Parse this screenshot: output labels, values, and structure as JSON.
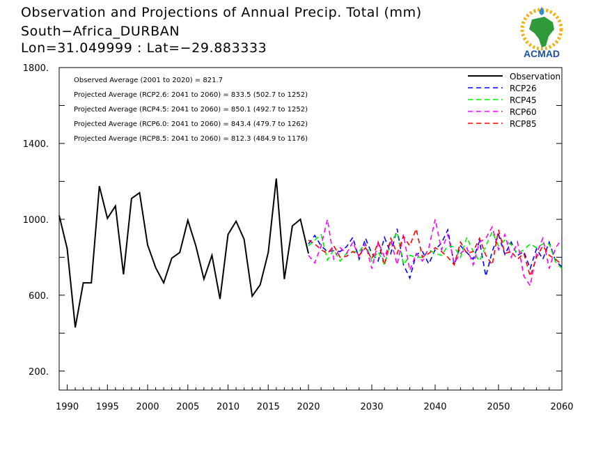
{
  "header": {
    "title": "Observation and Projections of Annual Precip. Total (mm)",
    "location": "South−Africa_DURBAN",
    "coords": "Lon=31.049999 : Lat=−29.883333"
  },
  "logo": {
    "text": "ACMAD",
    "icon": "africa-map-icon",
    "colors": {
      "africa": "#2e9a3a",
      "text": "#1f4fa8",
      "rays": "#f2b216",
      "drop": "#2a8fd6"
    }
  },
  "chart_data": {
    "type": "line",
    "ylim": [
      100,
      1800
    ],
    "yticks": [
      200,
      600,
      1000,
      1400,
      1800
    ],
    "ytick_labels": [
      "200.",
      "600.",
      "1000.",
      "1400.",
      "1800."
    ],
    "xticks": [
      1990,
      1995,
      2000,
      2005,
      2010,
      2015,
      2020,
      2030,
      2040,
      2050,
      2060
    ],
    "xtick_labels": [
      "1990",
      "1995",
      "2000",
      "2005",
      "2010",
      "2015",
      "2020",
      "2030",
      "2040",
      "2050",
      "2060"
    ],
    "axis_break_note": "x axis spans 1989-2020 (observations) then 2020-2060 (projections) at a different scale",
    "annotations": [
      "Observed Average (2001 to 2020) = 821.7",
      "Projected Average (RCP2.6: 2041 to 2060) = 833.5 (502.7 to 1252)",
      "Projected Average (RCP4.5: 2041 to 2060) = 850.1 (492.7 to 1252)",
      "Projected Average (RCP6.0: 2041 to 2060) = 843.4 (479.7 to 1262)",
      "Projected Average (RCP8.5: 2041 to 2060) = 812.3 (484.9 to 1176)"
    ],
    "legend_position": "top-right",
    "series": [
      {
        "name": "Observation",
        "color": "#000000",
        "dash": "solid",
        "x": [
          1989,
          1990,
          1991,
          1992,
          1993,
          1994,
          1995,
          1996,
          1997,
          1998,
          1999,
          2000,
          2001,
          2002,
          2003,
          2004,
          2005,
          2006,
          2007,
          2008,
          2009,
          2010,
          2011,
          2012,
          2013,
          2014,
          2015,
          2016,
          2017,
          2018,
          2019,
          2020
        ],
        "values": [
          1020,
          845,
          430,
          665,
          665,
          1175,
          1005,
          1070,
          710,
          1110,
          1140,
          865,
          745,
          665,
          795,
          825,
          995,
          860,
          685,
          810,
          580,
          920,
          990,
          895,
          595,
          655,
          825,
          1215,
          685,
          965,
          1000,
          820
        ]
      },
      {
        "name": "RCP26",
        "color": "#0000ff",
        "dash": "dashed",
        "x": [
          2020,
          2021,
          2022,
          2023,
          2024,
          2025,
          2026,
          2027,
          2028,
          2029,
          2030,
          2031,
          2032,
          2033,
          2034,
          2035,
          2036,
          2037,
          2038,
          2039,
          2040,
          2041,
          2042,
          2043,
          2044,
          2045,
          2046,
          2047,
          2048,
          2049,
          2050,
          2051,
          2052,
          2053,
          2054,
          2055,
          2056,
          2057,
          2058,
          2059,
          2060
        ],
        "values": [
          870,
          915,
          860,
          830,
          835,
          830,
          855,
          905,
          790,
          900,
          820,
          780,
          905,
          820,
          950,
          760,
          690,
          815,
          830,
          765,
          840,
          875,
          945,
          760,
          860,
          825,
          790,
          885,
          700,
          830,
          920,
          815,
          880,
          810,
          830,
          740,
          845,
          790,
          880,
          780,
          750
        ]
      },
      {
        "name": "RCP45",
        "color": "#00ee00",
        "dash": "dashed",
        "x": [
          2020,
          2021,
          2022,
          2023,
          2024,
          2025,
          2026,
          2027,
          2028,
          2029,
          2030,
          2031,
          2032,
          2033,
          2034,
          2035,
          2036,
          2037,
          2038,
          2039,
          2040,
          2041,
          2042,
          2043,
          2044,
          2045,
          2046,
          2047,
          2048,
          2049,
          2050,
          2051,
          2052,
          2053,
          2054,
          2055,
          2056,
          2057,
          2058,
          2059,
          2060
        ],
        "values": [
          860,
          890,
          920,
          785,
          840,
          780,
          820,
          830,
          830,
          875,
          780,
          830,
          760,
          880,
          930,
          760,
          810,
          800,
          800,
          840,
          820,
          810,
          860,
          855,
          800,
          905,
          830,
          780,
          860,
          935,
          860,
          890,
          865,
          820,
          840,
          870,
          850,
          870,
          870,
          775,
          740
        ]
      },
      {
        "name": "RCP60",
        "color": "#ff00ff",
        "dash": "dashed",
        "x": [
          2020,
          2021,
          2022,
          2023,
          2024,
          2025,
          2026,
          2027,
          2028,
          2029,
          2030,
          2031,
          2032,
          2033,
          2034,
          2035,
          2036,
          2037,
          2038,
          2039,
          2040,
          2041,
          2042,
          2043,
          2044,
          2045,
          2046,
          2047,
          2048,
          2049,
          2050,
          2051,
          2052,
          2053,
          2054,
          2055,
          2056,
          2057,
          2058,
          2059,
          2060
        ],
        "values": [
          810,
          770,
          860,
          1000,
          790,
          850,
          820,
          880,
          800,
          870,
          740,
          880,
          800,
          890,
          760,
          920,
          730,
          820,
          780,
          850,
          1000,
          840,
          920,
          770,
          820,
          850,
          760,
          880,
          900,
          960,
          840,
          920,
          800,
          880,
          700,
          650,
          820,
          900,
          740,
          850,
          895
        ]
      },
      {
        "name": "RCP85",
        "color": "#ff0000",
        "dash": "dashed",
        "x": [
          2020,
          2021,
          2022,
          2023,
          2024,
          2025,
          2026,
          2027,
          2028,
          2029,
          2030,
          2031,
          2032,
          2033,
          2034,
          2035,
          2036,
          2037,
          2038,
          2039,
          2040,
          2041,
          2042,
          2043,
          2044,
          2045,
          2046,
          2047,
          2048,
          2049,
          2050,
          2051,
          2052,
          2053,
          2054,
          2055,
          2056,
          2057,
          2058,
          2059,
          2060
        ],
        "values": [
          890,
          870,
          840,
          820,
          860,
          800,
          805,
          830,
          810,
          850,
          790,
          880,
          760,
          900,
          820,
          910,
          860,
          950,
          800,
          820,
          850,
          830,
          800,
          760,
          880,
          820,
          830,
          900,
          810,
          760,
          945,
          820,
          830,
          790,
          820,
          700,
          800,
          860,
          810,
          790,
          760
        ]
      }
    ]
  }
}
